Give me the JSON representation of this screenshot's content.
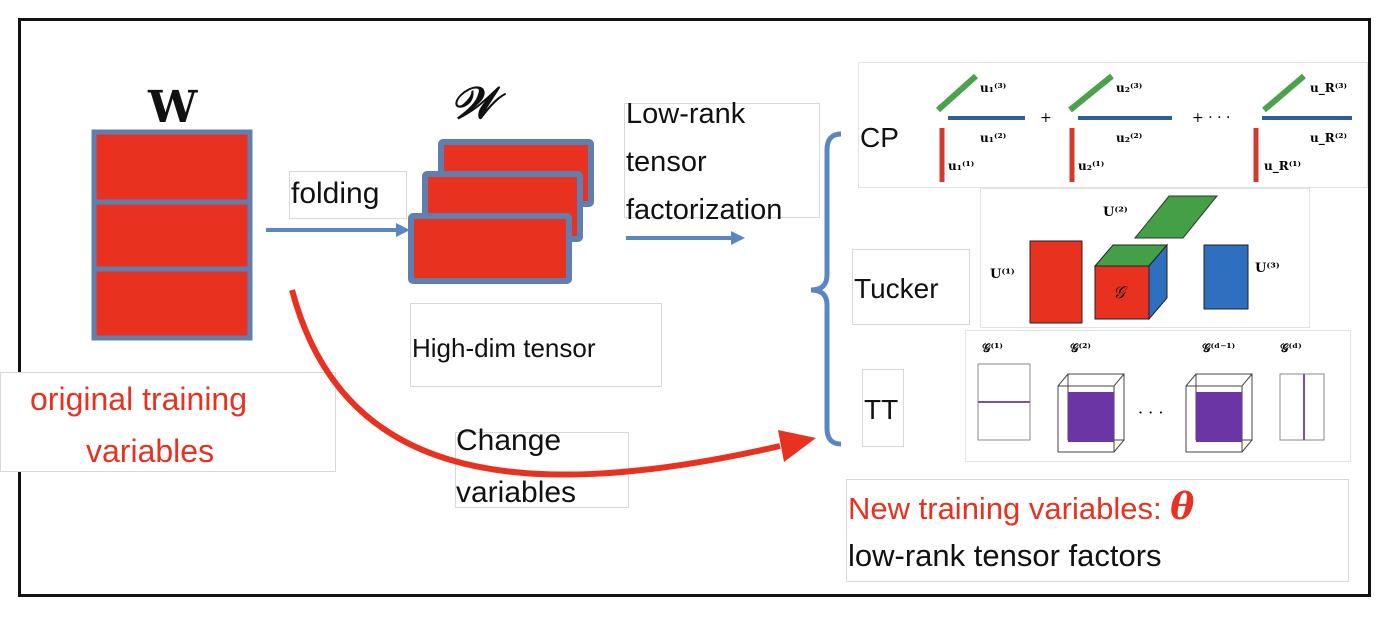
{
  "symbols": {
    "matrix": "W",
    "tensor": "𝒲",
    "theta": "θ"
  },
  "steps": {
    "folding": "folding",
    "factorization": [
      "Low-rank",
      "tensor",
      "factorization"
    ],
    "tensor_caption": "High-dim tensor",
    "change": [
      "Change",
      "variables"
    ]
  },
  "original": {
    "line1": "original training",
    "line2": "variables"
  },
  "methods": {
    "cp": "CP",
    "tucker": "Tucker",
    "tt": "TT"
  },
  "cp_terms": [
    {
      "u3": "u₁⁽³⁾",
      "u2": "u₁⁽²⁾",
      "u1": "u₁⁽¹⁾"
    },
    {
      "u3": "u₂⁽³⁾",
      "u2": "u₂⁽²⁾",
      "u1": "u₂⁽¹⁾"
    },
    {
      "u3": "u_R⁽³⁾",
      "u2": "u_R⁽²⁾",
      "u1": "u_R⁽¹⁾"
    }
  ],
  "cp_ops": {
    "plus": "+",
    "plus_dots": "+ · · ·"
  },
  "tucker_labels": {
    "u1": "U⁽¹⁾",
    "u2": "U⁽²⁾",
    "u3": "U⁽³⁾",
    "core": "𝒢"
  },
  "tt_labels": {
    "g1": "𝒢⁽¹⁾",
    "g2": "𝒢⁽²⁾",
    "gd1": "𝒢⁽ᵈ⁻¹⁾",
    "gd": "𝒢⁽ᵈ⁾",
    "dots": "· · ·"
  },
  "new_vars": {
    "line1": "New training variables: ",
    "line2": "low-rank tensor factors"
  },
  "colors": {
    "red": "#e8321f",
    "blue": "#2e6fc0",
    "green": "#44a046",
    "purple": "#6b35a6",
    "arrow_blue": "#5a87c4",
    "text_red": "#e8321f"
  }
}
